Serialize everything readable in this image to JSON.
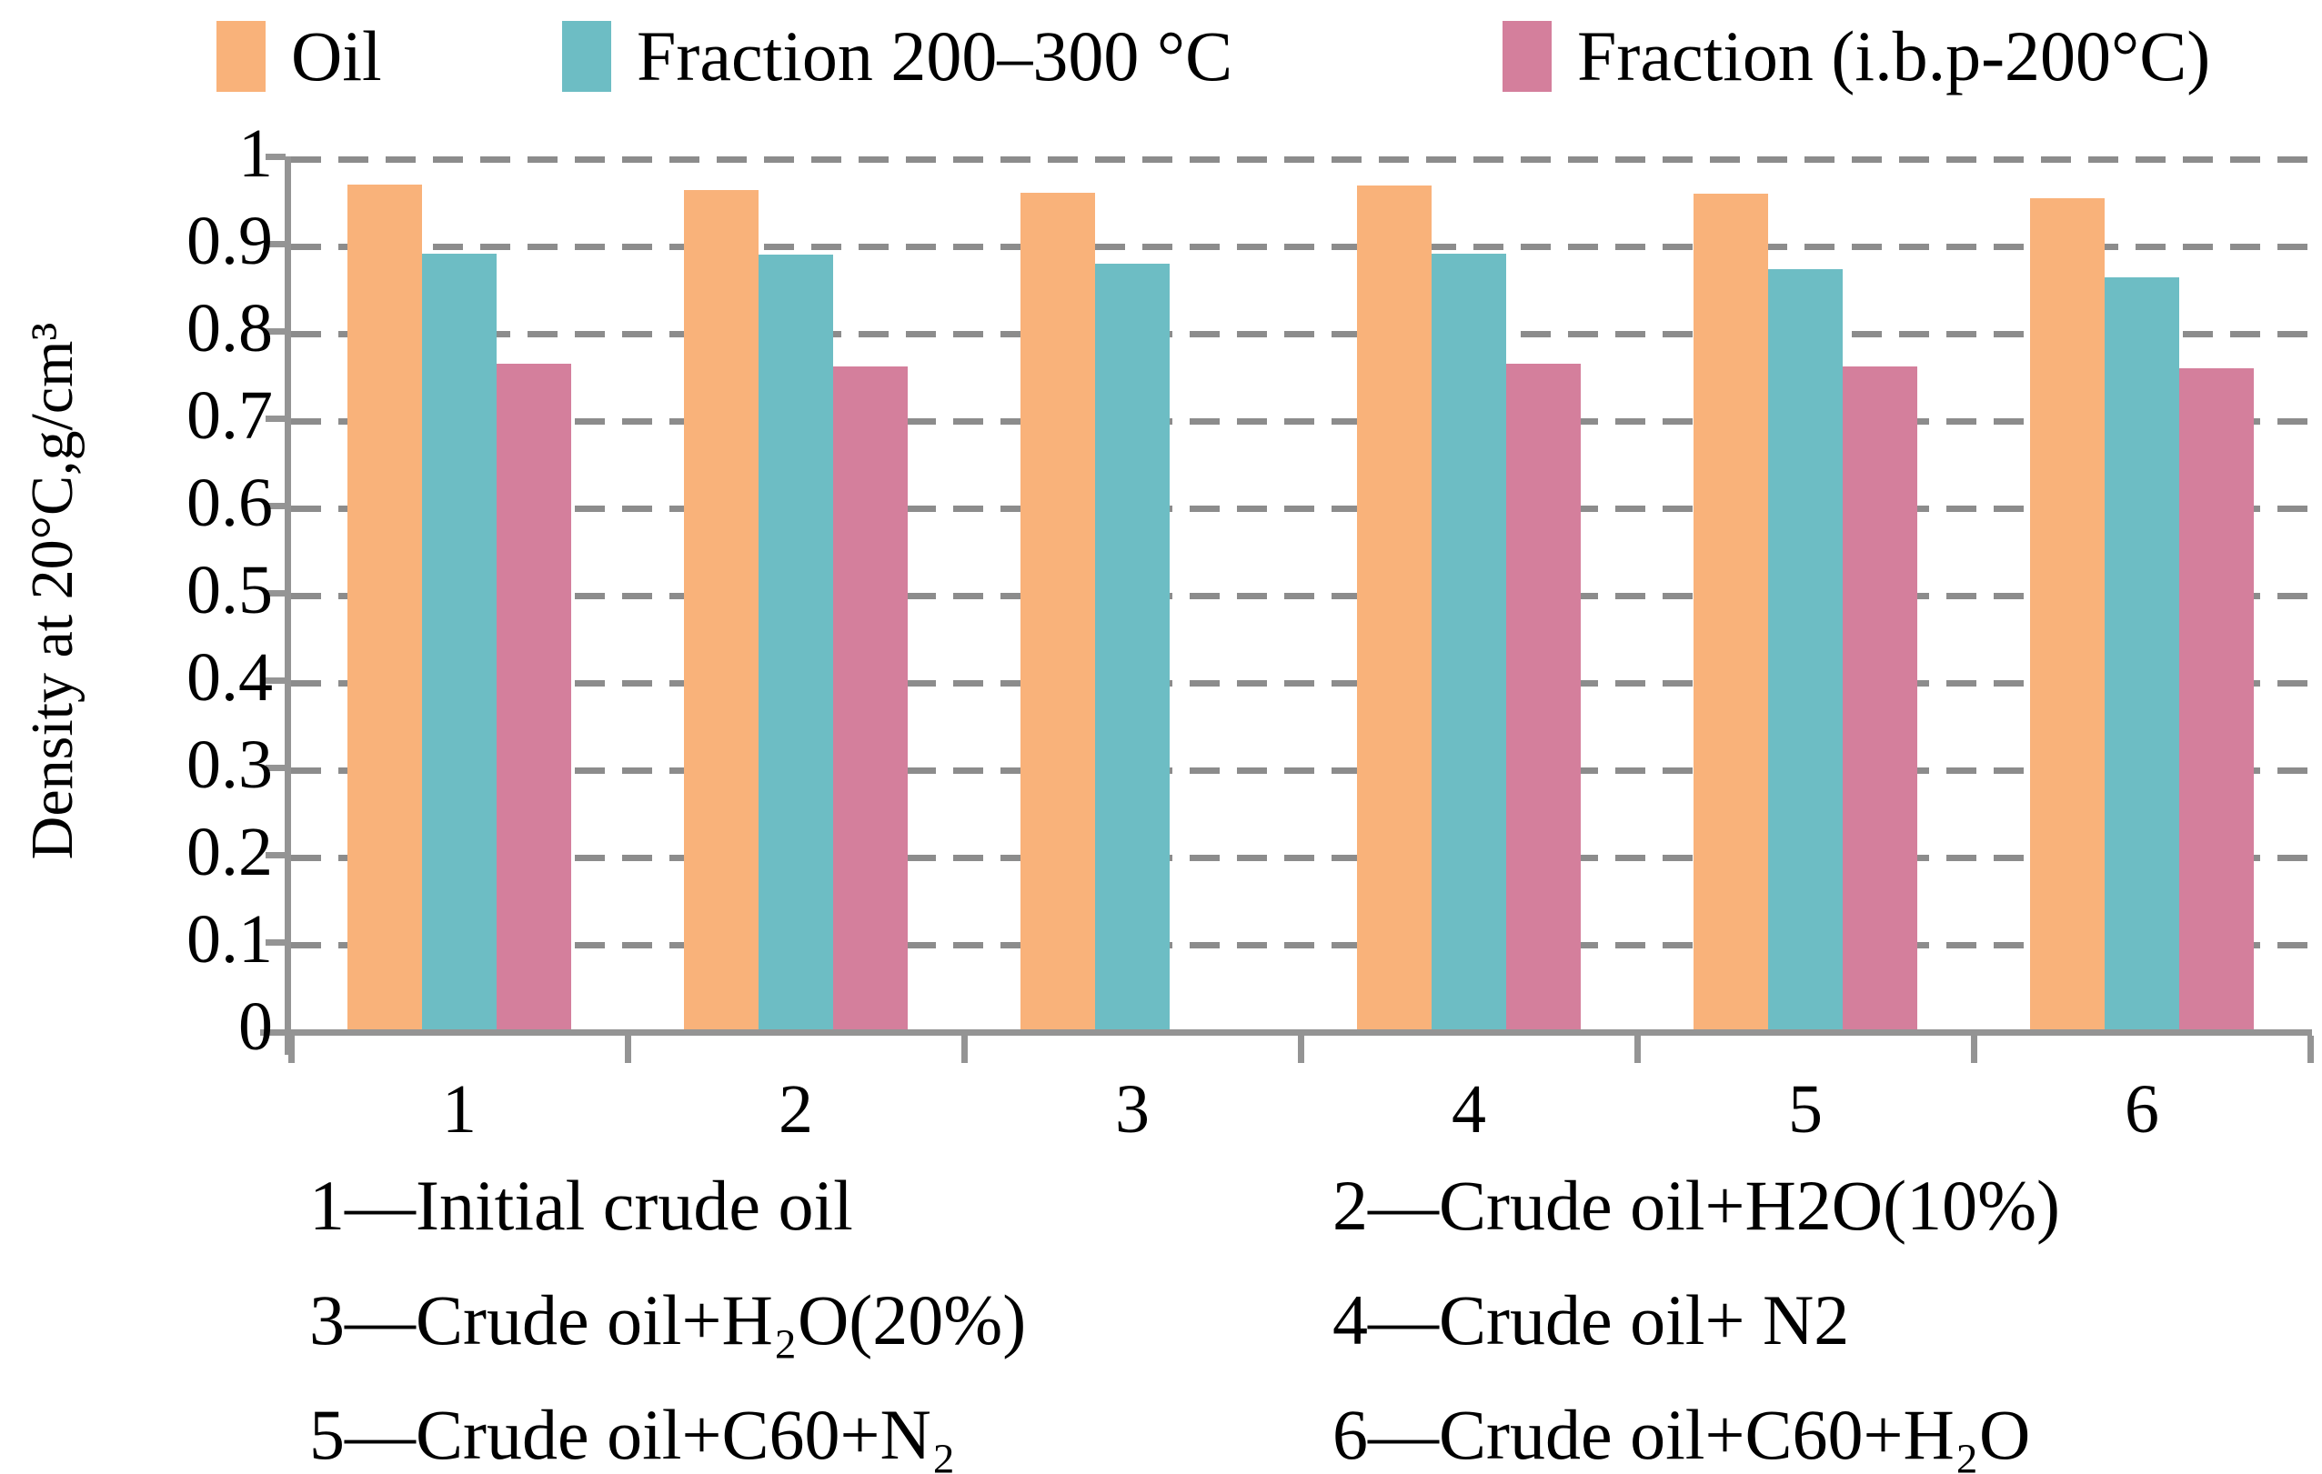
{
  "chart_data": {
    "type": "bar",
    "title": "",
    "categories": [
      "1",
      "2",
      "3",
      "4",
      "5",
      "6"
    ],
    "series": [
      {
        "name": "Oil",
        "color": "#F9B27A",
        "values": [
          0.968,
          0.961,
          0.958,
          0.967,
          0.957,
          0.952
        ]
      },
      {
        "name": "Fraction 200–300 °C",
        "color": "#6DBDC4",
        "values": [
          0.889,
          0.888,
          0.877,
          0.889,
          0.871,
          0.861
        ]
      },
      {
        "name": "Fraction (i.b.p-200°C)",
        "color": "#D47F9C",
        "values": [
          0.763,
          0.759,
          null,
          0.762,
          0.759,
          0.757
        ]
      }
    ],
    "ylabel": "Density at 20°C,g/cm³",
    "xlabel": "",
    "ylim": [
      0,
      1
    ],
    "ytick_step": 0.1,
    "yticks": [
      "1",
      "0.9",
      "0.8",
      "0.7",
      "0.6",
      "0.5",
      "0.4",
      "0.3",
      "0.2",
      "0.1",
      "0"
    ],
    "grid": "horizontal-dashed",
    "grid_color": "#8C8C8C",
    "axis_color": "#949494",
    "legend_position": "top",
    "category_key": [
      "1—Initial crude oil",
      "2—Crude oil+H2O(10%)",
      "3—Crude oil+H₂O(20%)",
      "4—Crude oil+ N2",
      "5—Crude oil+C60+N₂",
      "6—Crude oil+C60+H₂O"
    ]
  }
}
